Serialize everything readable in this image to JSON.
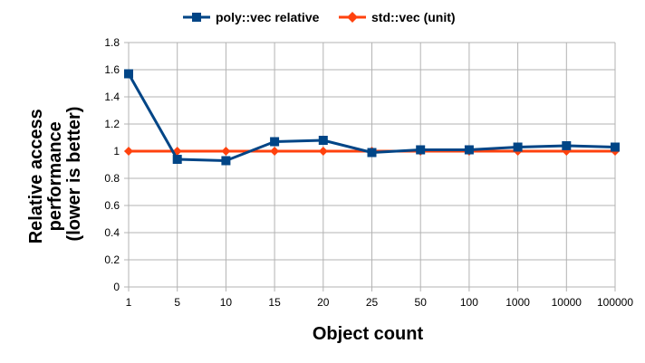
{
  "chart_data": {
    "type": "line",
    "title": "",
    "xlabel": "Object count",
    "ylabel_lines": [
      "Relative access",
      "performance",
      "(lower is better)"
    ],
    "categories": [
      "1",
      "5",
      "10",
      "15",
      "20",
      "25",
      "50",
      "100",
      "1000",
      "10000",
      "100000"
    ],
    "ylim": [
      0,
      1.8
    ],
    "yticks": [
      "0",
      "0.2",
      "0.4",
      "0.6",
      "0.8",
      "1",
      "1.2",
      "1.4",
      "1.6",
      "1.8"
    ],
    "grid": true,
    "legend_position": "top-center",
    "series": [
      {
        "name": "poly::vec relative",
        "color": "#004586",
        "marker": "square",
        "values": [
          1.57,
          0.94,
          0.93,
          1.07,
          1.08,
          0.99,
          1.01,
          1.01,
          1.03,
          1.04,
          1.03
        ]
      },
      {
        "name": "std::vec (unit)",
        "color": "#ff420e",
        "marker": "diamond",
        "values": [
          1,
          1,
          1,
          1,
          1,
          1,
          1,
          1,
          1,
          1,
          1
        ]
      }
    ]
  }
}
